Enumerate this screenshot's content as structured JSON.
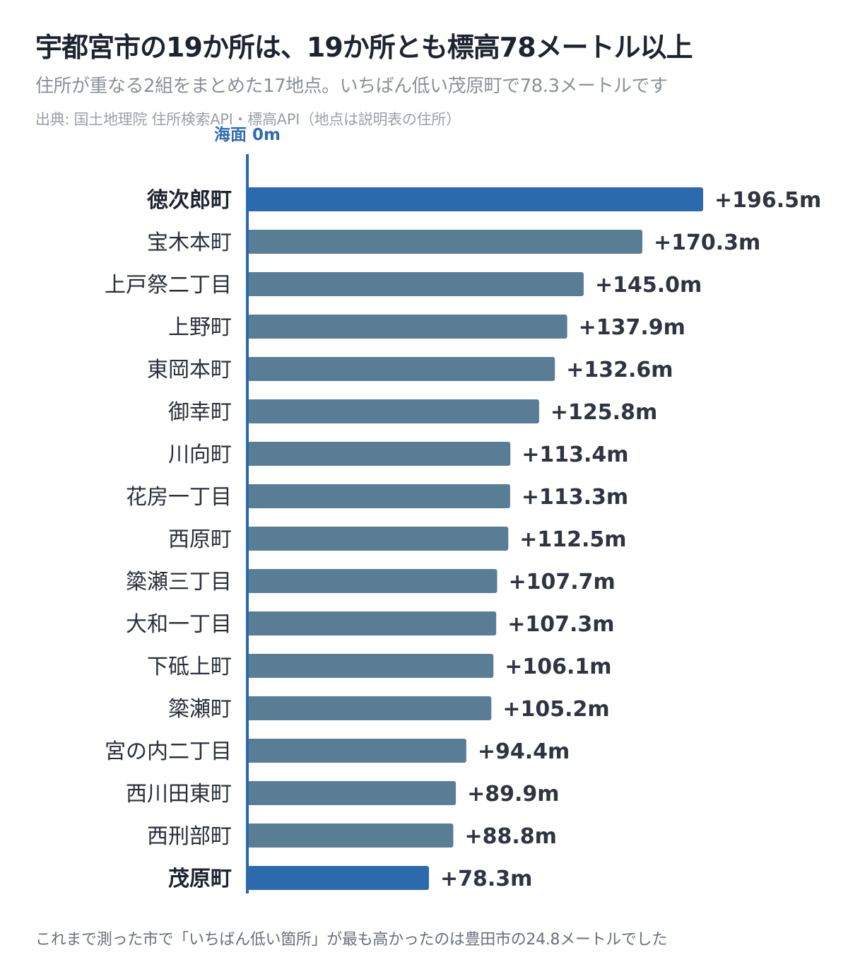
{
  "title": "宇都宮市の19か所は、19か所とも標高78メートル以上",
  "subtitle": "住所が重なる2組をまとめた17地点。いちばん低い茂原町で78.3メートルです",
  "source": "出典: 国土地理院 住所検索API・標高API（地点は説明表の住所）",
  "footnote": "これまで測った市で「いちばん低い箇所」が最も高かったのは豊田市の24.8メートルでした",
  "chart_data": {
    "type": "bar",
    "orientation": "horizontal",
    "axis_label": "海面 0m",
    "value_prefix": "+",
    "value_suffix": "m",
    "categories": [
      "徳次郎町",
      "宝木本町",
      "上戸祭二丁目",
      "上野町",
      "東岡本町",
      "御幸町",
      "川向町",
      "花房一丁目",
      "西原町",
      "簗瀬三丁目",
      "大和一丁目",
      "下砥上町",
      "簗瀬町",
      "宮の内二丁目",
      "西川田東町",
      "西刑部町",
      "茂原町"
    ],
    "values": [
      196.5,
      170.3,
      145.0,
      137.9,
      132.6,
      125.8,
      113.4,
      113.3,
      112.5,
      107.7,
      107.3,
      106.1,
      105.2,
      94.4,
      89.9,
      88.8,
      78.3
    ],
    "highlighted": [
      "徳次郎町",
      "茂原町"
    ],
    "xlim": [
      0,
      196.5
    ],
    "colors": {
      "highlight": "#2c6aae",
      "default": "#5a7d96",
      "axis": "#2c6aae"
    }
  }
}
